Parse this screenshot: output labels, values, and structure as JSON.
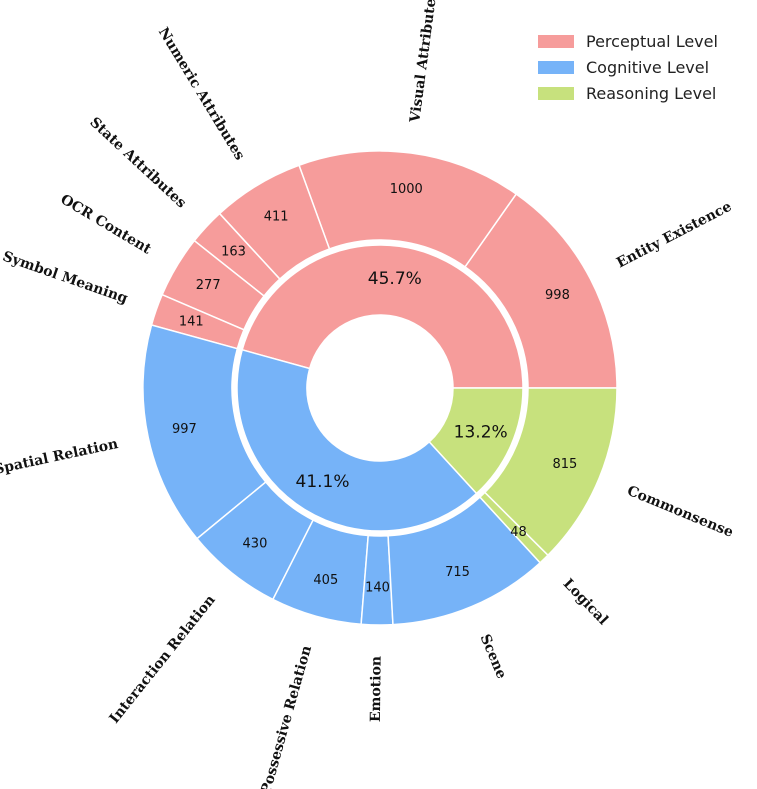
{
  "chart_data": {
    "type": "pie",
    "variant": "nested-donut",
    "colors": {
      "Perceptual Level": "#f69c9b",
      "Cognitive Level": "#76b3f8",
      "Reasoning Level": "#c7e17d"
    },
    "inner": [
      {
        "name": "Perceptual Level",
        "value": 45.7,
        "label": "45.7%"
      },
      {
        "name": "Cognitive Level",
        "value": 41.1,
        "label": "41.1%"
      },
      {
        "name": "Reasoning Level",
        "value": 13.2,
        "label": "13.2%"
      }
    ],
    "outer": [
      {
        "name": "Entity Existence",
        "value": 998,
        "group": "Perceptual Level"
      },
      {
        "name": "Visual Attributes",
        "value": 1000,
        "group": "Perceptual Level"
      },
      {
        "name": "Numeric Attributes",
        "value": 411,
        "group": "Perceptual Level"
      },
      {
        "name": "State Attributes",
        "value": 163,
        "group": "Perceptual Level"
      },
      {
        "name": "OCR Content",
        "value": 277,
        "group": "Perceptual Level"
      },
      {
        "name": "Symbol Meaning",
        "value": 141,
        "group": "Perceptual Level"
      },
      {
        "name": "Spatial Relation",
        "value": 997,
        "group": "Cognitive Level"
      },
      {
        "name": "Interaction Relation",
        "value": 430,
        "group": "Cognitive Level"
      },
      {
        "name": "Possessive Relation",
        "value": 405,
        "group": "Cognitive Level"
      },
      {
        "name": "Emotion",
        "value": 140,
        "group": "Cognitive Level"
      },
      {
        "name": "Scene",
        "value": 715,
        "group": "Cognitive Level"
      },
      {
        "name": "Logical",
        "value": 48,
        "group": "Reasoning Level"
      },
      {
        "name": "Commonsense",
        "value": 815,
        "group": "Reasoning Level"
      }
    ],
    "legend": {
      "placement": "top-right",
      "entries": [
        "Perceptual Level",
        "Cognitive Level",
        "Reasoning Level"
      ]
    }
  }
}
